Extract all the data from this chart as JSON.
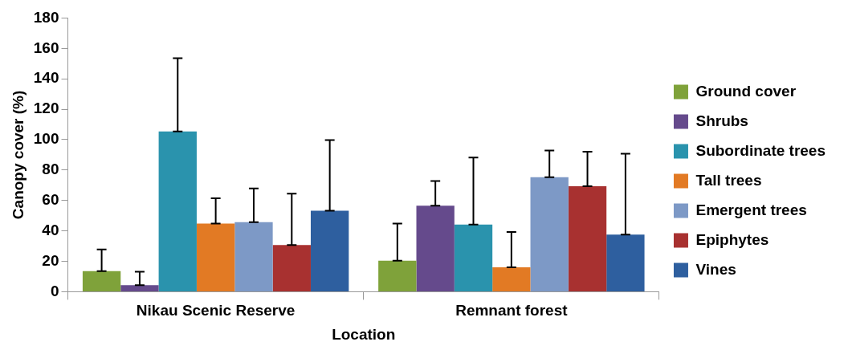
{
  "chart_data": {
    "type": "bar",
    "xlabel": "Location",
    "ylabel": "Canopy cover (%)",
    "categories": [
      "Nikau Scenic Reserve",
      "Remnant forest"
    ],
    "series": [
      {
        "name": "Ground cover",
        "color": "#7fa23a",
        "values": [
          13.6,
          20.4
        ],
        "errors": [
          [
            13.6,
            27.8
          ],
          [
            20.4,
            44.8
          ]
        ]
      },
      {
        "name": "Shrubs",
        "color": "#654a8c",
        "values": [
          4.3,
          56.5
        ],
        "errors": [
          [
            4.3,
            13.1
          ],
          [
            56.5,
            72.8
          ]
        ]
      },
      {
        "name": "Subordinate trees",
        "color": "#2a93ad",
        "values": [
          105.4,
          44.1
        ],
        "errors": [
          [
            105.4,
            153.6
          ],
          [
            44.1,
            88.2
          ]
        ]
      },
      {
        "name": "Tall trees",
        "color": "#e27a24",
        "values": [
          44.8,
          16.1
        ],
        "errors": [
          [
            44.8,
            61.5
          ],
          [
            16.1,
            39.3
          ]
        ]
      },
      {
        "name": "Emergent trees",
        "color": "#7d99c6",
        "values": [
          45.7,
          75.3
        ],
        "errors": [
          [
            45.7,
            67.9
          ],
          [
            75.3,
            92.9
          ]
        ]
      },
      {
        "name": "Epiphytes",
        "color": "#a83130",
        "values": [
          30.7,
          69.4
        ],
        "errors": [
          [
            30.7,
            64.5
          ],
          [
            69.4,
            92.1
          ]
        ]
      },
      {
        "name": "Vines",
        "color": "#2e5f9f",
        "values": [
          53.2,
          37.6
        ],
        "errors": [
          [
            53.2,
            99.7
          ],
          [
            37.6,
            90.7
          ]
        ]
      }
    ],
    "ylim": [
      0,
      180
    ],
    "yticks": [
      0,
      20,
      40,
      60,
      80,
      100,
      120,
      140,
      160,
      180
    ],
    "grid": false,
    "legend": "right"
  }
}
